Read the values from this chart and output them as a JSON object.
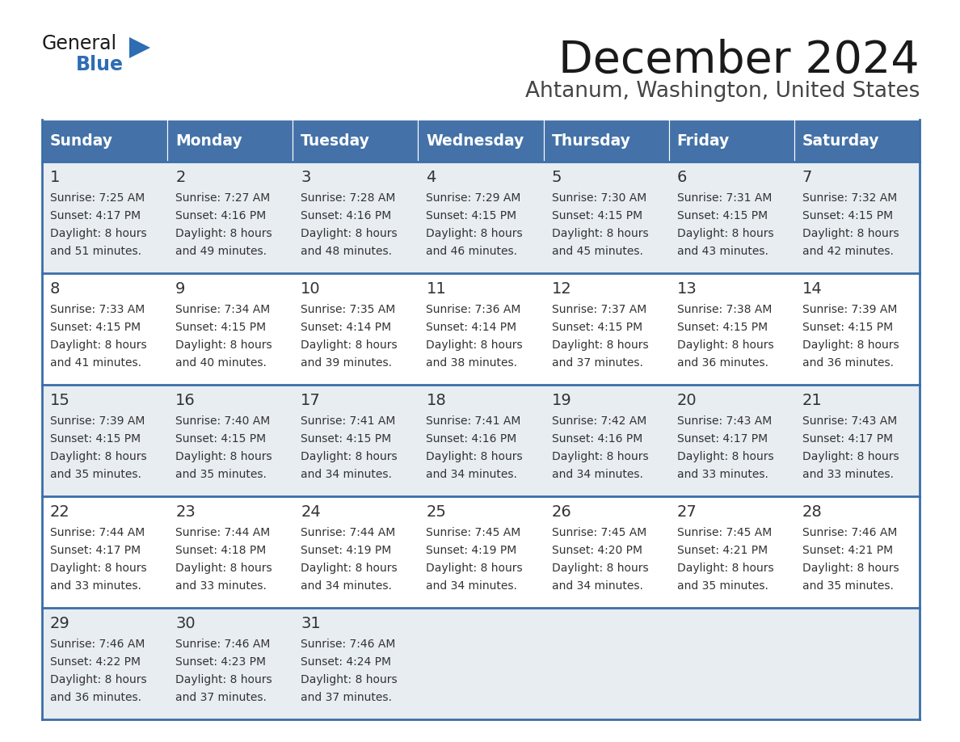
{
  "title": "December 2024",
  "subtitle": "Ahtanum, Washington, United States",
  "header_color": "#4472a8",
  "header_text_color": "#ffffff",
  "days_of_week": [
    "Sunday",
    "Monday",
    "Tuesday",
    "Wednesday",
    "Thursday",
    "Friday",
    "Saturday"
  ],
  "row_bg_colors": [
    "#e8edf2",
    "#ffffff",
    "#e8edf2",
    "#ffffff",
    "#e8edf2"
  ],
  "cell_border_color": "#3a6ea8",
  "title_color": "#1a1a1a",
  "subtitle_color": "#444444",
  "logo_general_color": "#1a1a1a",
  "logo_blue_color": "#2e6db4",
  "logo_triangle_color": "#2e6db4",
  "day_number_color": "#333333",
  "cell_text_color": "#333333",
  "weeks": [
    [
      {
        "day": 1,
        "sunrise": "7:25 AM",
        "sunset": "4:17 PM",
        "daylight": "8 hours",
        "daylight2": "and 51 minutes."
      },
      {
        "day": 2,
        "sunrise": "7:27 AM",
        "sunset": "4:16 PM",
        "daylight": "8 hours",
        "daylight2": "and 49 minutes."
      },
      {
        "day": 3,
        "sunrise": "7:28 AM",
        "sunset": "4:16 PM",
        "daylight": "8 hours",
        "daylight2": "and 48 minutes."
      },
      {
        "day": 4,
        "sunrise": "7:29 AM",
        "sunset": "4:15 PM",
        "daylight": "8 hours",
        "daylight2": "and 46 minutes."
      },
      {
        "day": 5,
        "sunrise": "7:30 AM",
        "sunset": "4:15 PM",
        "daylight": "8 hours",
        "daylight2": "and 45 minutes."
      },
      {
        "day": 6,
        "sunrise": "7:31 AM",
        "sunset": "4:15 PM",
        "daylight": "8 hours",
        "daylight2": "and 43 minutes."
      },
      {
        "day": 7,
        "sunrise": "7:32 AM",
        "sunset": "4:15 PM",
        "daylight": "8 hours",
        "daylight2": "and 42 minutes."
      }
    ],
    [
      {
        "day": 8,
        "sunrise": "7:33 AM",
        "sunset": "4:15 PM",
        "daylight": "8 hours",
        "daylight2": "and 41 minutes."
      },
      {
        "day": 9,
        "sunrise": "7:34 AM",
        "sunset": "4:15 PM",
        "daylight": "8 hours",
        "daylight2": "and 40 minutes."
      },
      {
        "day": 10,
        "sunrise": "7:35 AM",
        "sunset": "4:14 PM",
        "daylight": "8 hours",
        "daylight2": "and 39 minutes."
      },
      {
        "day": 11,
        "sunrise": "7:36 AM",
        "sunset": "4:14 PM",
        "daylight": "8 hours",
        "daylight2": "and 38 minutes."
      },
      {
        "day": 12,
        "sunrise": "7:37 AM",
        "sunset": "4:15 PM",
        "daylight": "8 hours",
        "daylight2": "and 37 minutes."
      },
      {
        "day": 13,
        "sunrise": "7:38 AM",
        "sunset": "4:15 PM",
        "daylight": "8 hours",
        "daylight2": "and 36 minutes."
      },
      {
        "day": 14,
        "sunrise": "7:39 AM",
        "sunset": "4:15 PM",
        "daylight": "8 hours",
        "daylight2": "and 36 minutes."
      }
    ],
    [
      {
        "day": 15,
        "sunrise": "7:39 AM",
        "sunset": "4:15 PM",
        "daylight": "8 hours",
        "daylight2": "and 35 minutes."
      },
      {
        "day": 16,
        "sunrise": "7:40 AM",
        "sunset": "4:15 PM",
        "daylight": "8 hours",
        "daylight2": "and 35 minutes."
      },
      {
        "day": 17,
        "sunrise": "7:41 AM",
        "sunset": "4:15 PM",
        "daylight": "8 hours",
        "daylight2": "and 34 minutes."
      },
      {
        "day": 18,
        "sunrise": "7:41 AM",
        "sunset": "4:16 PM",
        "daylight": "8 hours",
        "daylight2": "and 34 minutes."
      },
      {
        "day": 19,
        "sunrise": "7:42 AM",
        "sunset": "4:16 PM",
        "daylight": "8 hours",
        "daylight2": "and 34 minutes."
      },
      {
        "day": 20,
        "sunrise": "7:43 AM",
        "sunset": "4:17 PM",
        "daylight": "8 hours",
        "daylight2": "and 33 minutes."
      },
      {
        "day": 21,
        "sunrise": "7:43 AM",
        "sunset": "4:17 PM",
        "daylight": "8 hours",
        "daylight2": "and 33 minutes."
      }
    ],
    [
      {
        "day": 22,
        "sunrise": "7:44 AM",
        "sunset": "4:17 PM",
        "daylight": "8 hours",
        "daylight2": "and 33 minutes."
      },
      {
        "day": 23,
        "sunrise": "7:44 AM",
        "sunset": "4:18 PM",
        "daylight": "8 hours",
        "daylight2": "and 33 minutes."
      },
      {
        "day": 24,
        "sunrise": "7:44 AM",
        "sunset": "4:19 PM",
        "daylight": "8 hours",
        "daylight2": "and 34 minutes."
      },
      {
        "day": 25,
        "sunrise": "7:45 AM",
        "sunset": "4:19 PM",
        "daylight": "8 hours",
        "daylight2": "and 34 minutes."
      },
      {
        "day": 26,
        "sunrise": "7:45 AM",
        "sunset": "4:20 PM",
        "daylight": "8 hours",
        "daylight2": "and 34 minutes."
      },
      {
        "day": 27,
        "sunrise": "7:45 AM",
        "sunset": "4:21 PM",
        "daylight": "8 hours",
        "daylight2": "and 35 minutes."
      },
      {
        "day": 28,
        "sunrise": "7:46 AM",
        "sunset": "4:21 PM",
        "daylight": "8 hours",
        "daylight2": "and 35 minutes."
      }
    ],
    [
      {
        "day": 29,
        "sunrise": "7:46 AM",
        "sunset": "4:22 PM",
        "daylight": "8 hours",
        "daylight2": "and 36 minutes."
      },
      {
        "day": 30,
        "sunrise": "7:46 AM",
        "sunset": "4:23 PM",
        "daylight": "8 hours",
        "daylight2": "and 37 minutes."
      },
      {
        "day": 31,
        "sunrise": "7:46 AM",
        "sunset": "4:24 PM",
        "daylight": "8 hours",
        "daylight2": "and 37 minutes."
      },
      null,
      null,
      null,
      null
    ]
  ]
}
